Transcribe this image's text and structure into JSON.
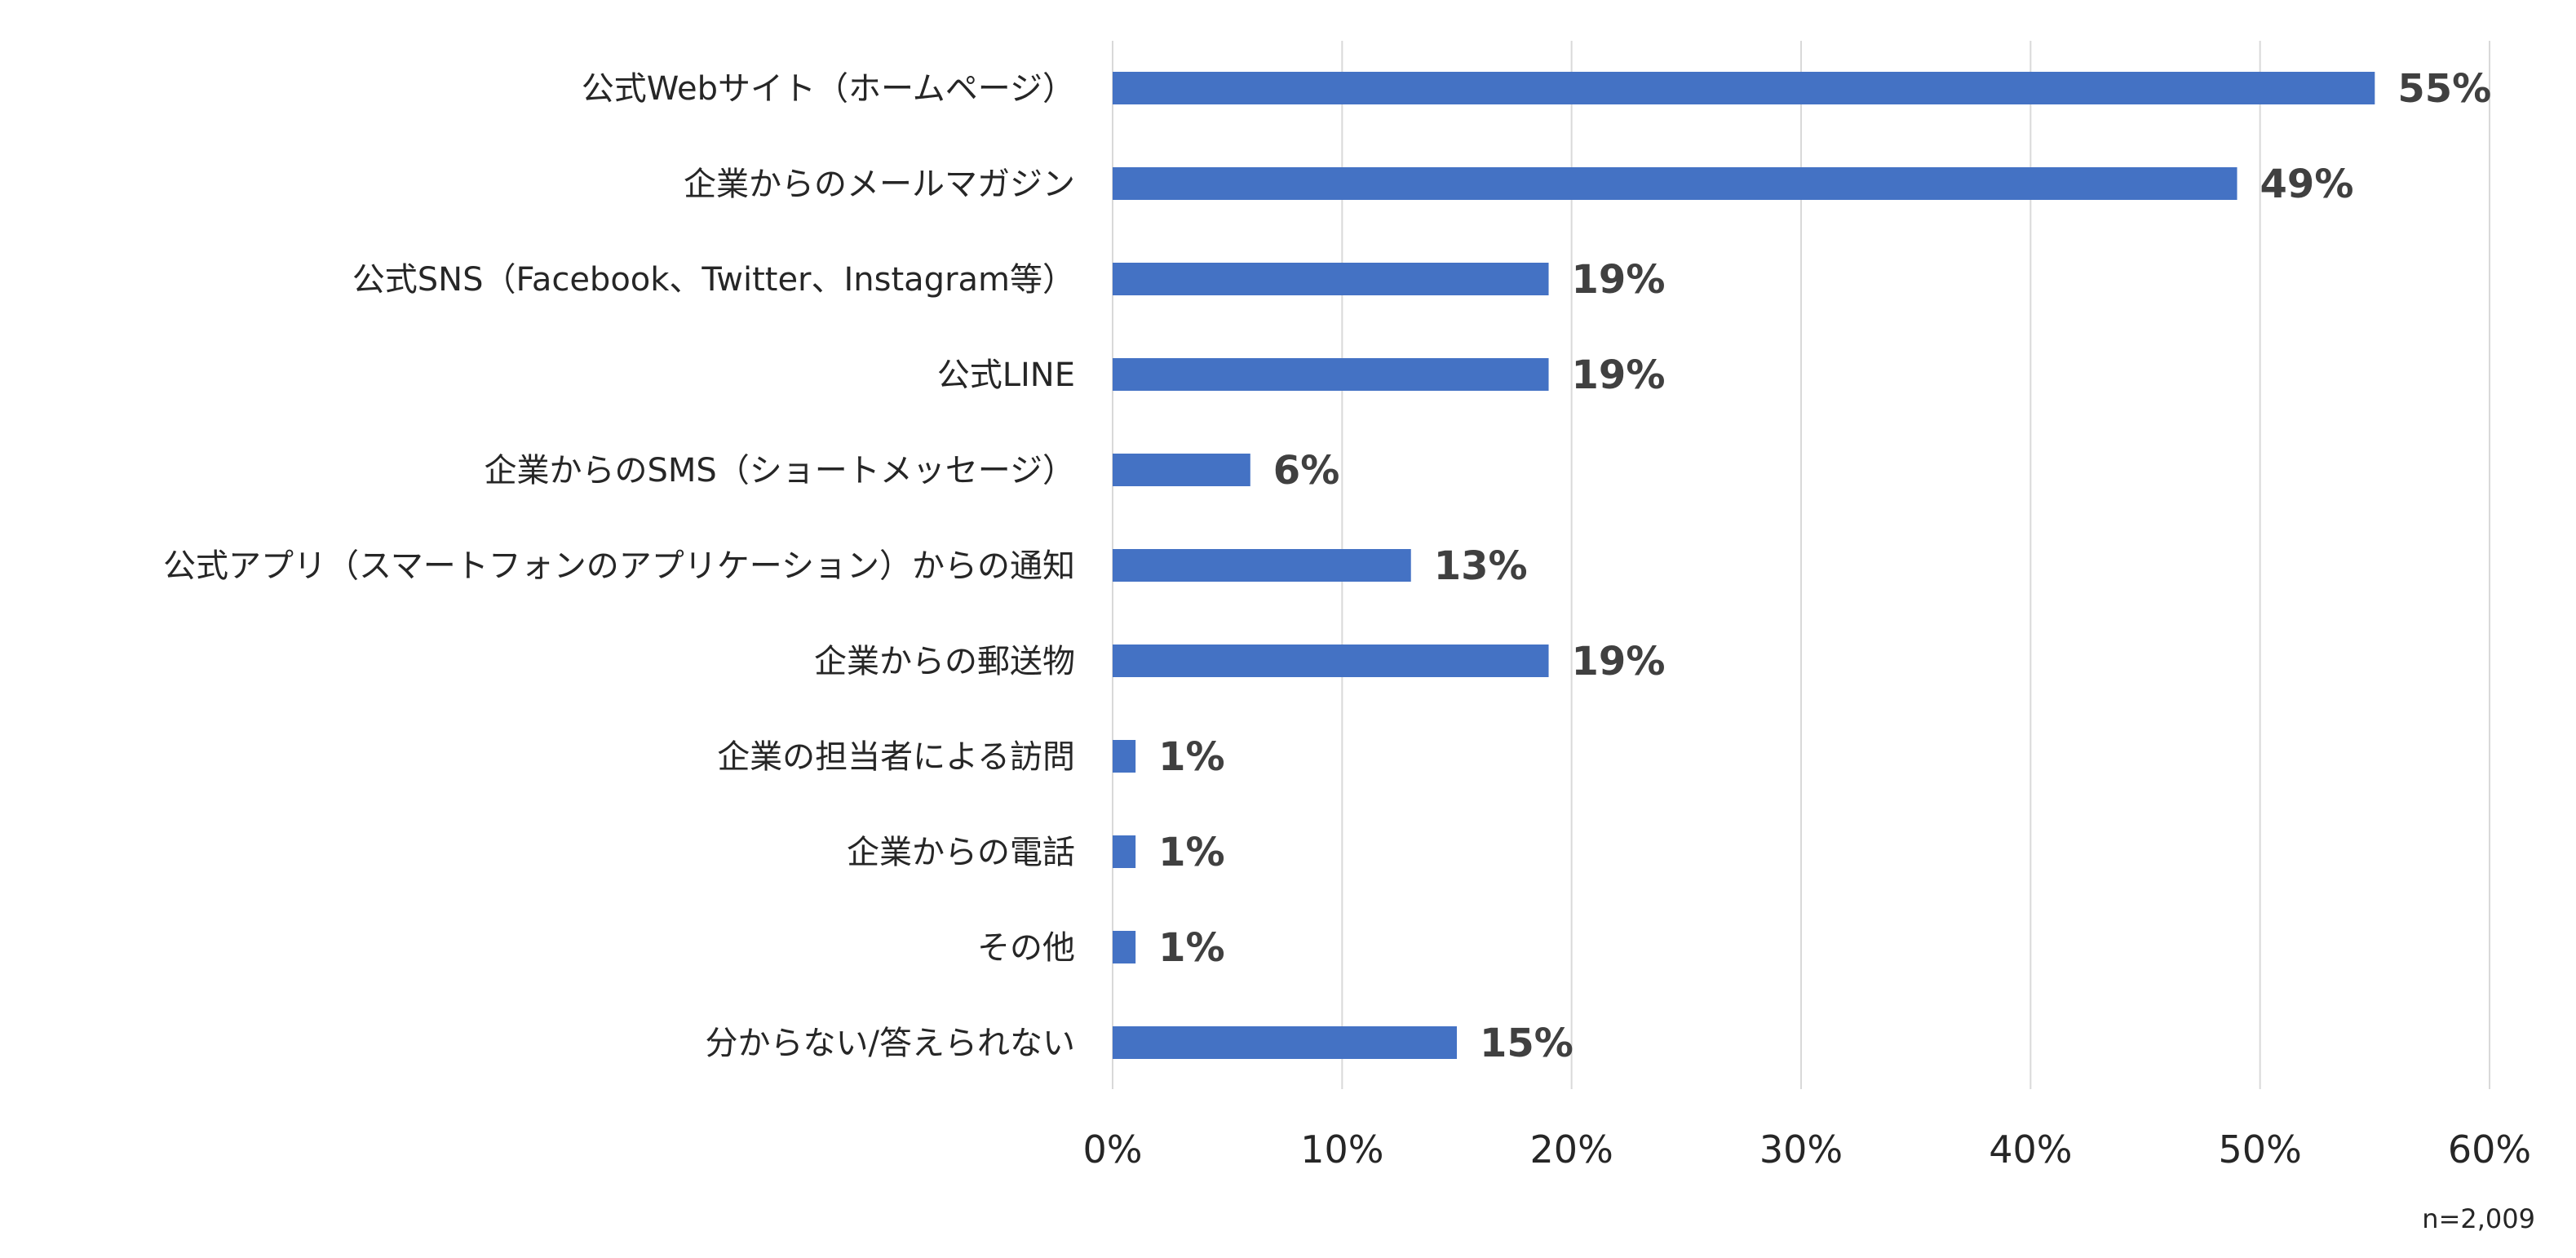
{
  "chart_data": {
    "type": "bar",
    "orientation": "horizontal",
    "categories": [
      "公式Webサイト（ホームページ）",
      "企業からのメールマガジン",
      "公式SNS（Facebook、Twitter、Instagram等）",
      "公式LINE",
      "企業からのSMS（ショートメッセージ）",
      "公式アプリ（スマートフォンのアプリケーション）からの通知",
      "企業からの郵送物",
      "企業の担当者による訪問",
      "企業からの電話",
      "その他",
      "分からない/答えられない"
    ],
    "values": [
      55,
      49,
      19,
      19,
      6,
      13,
      19,
      1,
      1,
      1,
      15
    ],
    "value_labels": [
      "55%",
      "49%",
      "19%",
      "19%",
      "6%",
      "13%",
      "19%",
      "1%",
      "1%",
      "1%",
      "15%"
    ],
    "xlim": [
      0,
      60
    ],
    "x_ticks": [
      0,
      10,
      20,
      30,
      40,
      50,
      60
    ],
    "x_tick_labels": [
      "0%",
      "10%",
      "20%",
      "30%",
      "40%",
      "50%",
      "60%"
    ],
    "grid": "vertical",
    "legend": "none",
    "bar_color": "#4472C4",
    "note": "n=2,009"
  }
}
